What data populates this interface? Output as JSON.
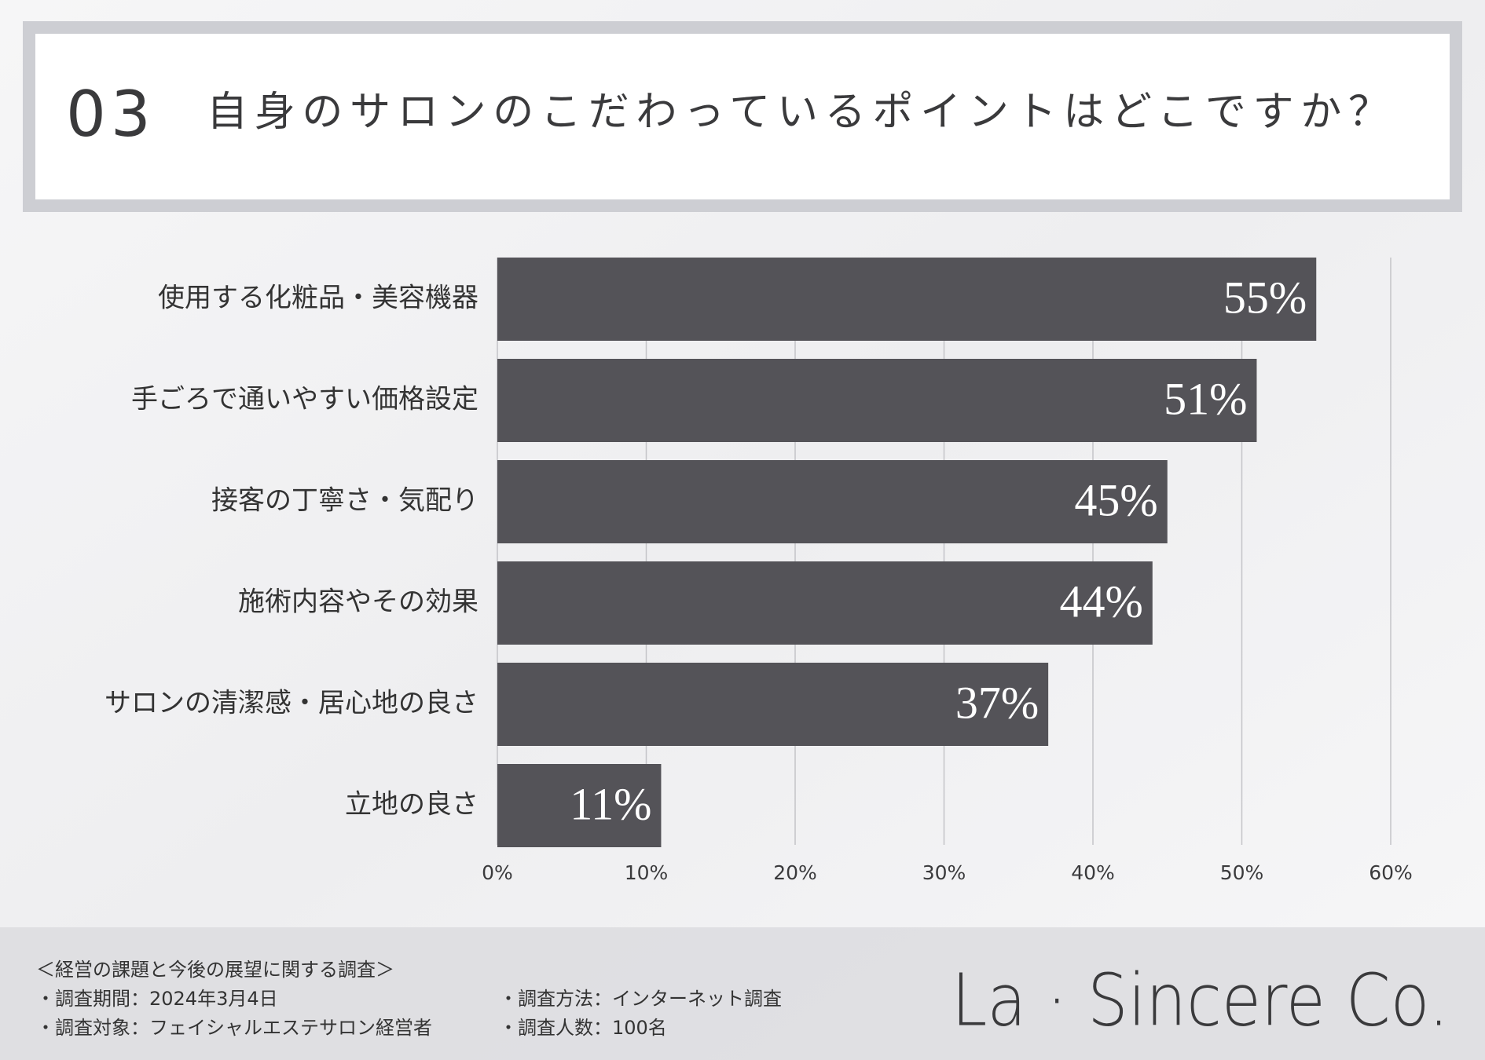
{
  "header": {
    "number": "03",
    "title": "自身のサロンのこだわっているポイントはどこですか？"
  },
  "chart_data": {
    "type": "bar",
    "orientation": "horizontal",
    "categories": [
      "使用する化粧品・美容機器",
      "手ごろで通いやすい価格設定",
      "接客の丁寧さ・気配り",
      "施術内容やその効果",
      "サロンの清潔感・居心地の良さ",
      "立地の良さ"
    ],
    "values": [
      55,
      51,
      45,
      44,
      37,
      11
    ],
    "value_labels": [
      "55%",
      "51%",
      "45%",
      "44%",
      "37%",
      "11%"
    ],
    "color": "#545358",
    "xlim": [
      0,
      60
    ],
    "xticks": [
      {
        "value": 0,
        "label": "0%"
      },
      {
        "value": 10,
        "label": "10%"
      },
      {
        "value": 20,
        "label": "20%"
      },
      {
        "value": 30,
        "label": "30%"
      },
      {
        "value": 40,
        "label": "40%"
      },
      {
        "value": 50,
        "label": "50%"
      },
      {
        "value": 60,
        "label": "60%"
      }
    ],
    "grid": true
  },
  "footer": {
    "survey_title": "＜経営の課題と今後の展望に関する調査＞",
    "items": [
      "・調査期間：2024年3月4日",
      "・調査方法：インターネット調査",
      "・調査対象：フェイシャルエステサロン経営者",
      "・調査人数：100名"
    ],
    "logo": "La · Sincere Co."
  }
}
